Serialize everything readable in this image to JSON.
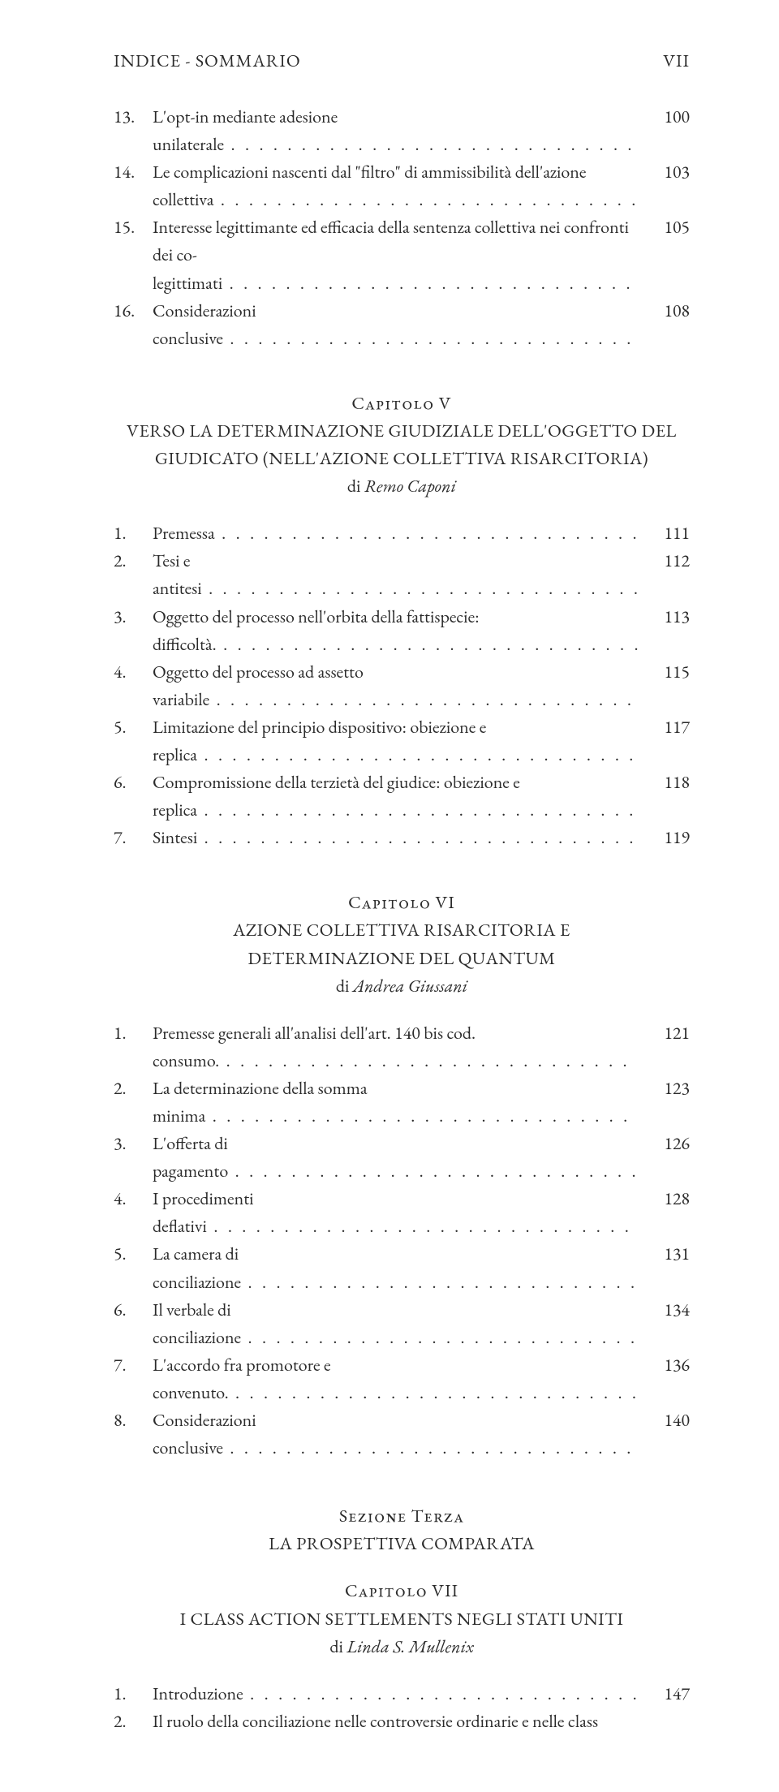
{
  "runningHead": {
    "left": "INDICE - SOMMARIO",
    "right": "VII"
  },
  "group1": [
    {
      "n": "13.",
      "t": "L'opt-in mediante adesione unilaterale",
      "p": "100"
    },
    {
      "n": "14.",
      "t": "Le complicazioni nascenti dal \"filtro\" di ammissibilità dell'azione collettiva",
      "p": "103"
    },
    {
      "n": "15.",
      "t": "Interesse legittimante ed efficacia della sentenza collettiva nei confronti dei co-legittimati",
      "p": "105"
    },
    {
      "n": "16.",
      "t": "Considerazioni conclusive",
      "p": "108"
    }
  ],
  "chapter5": {
    "label": "Capitolo V",
    "title_l1": "VERSO LA DETERMINAZIONE GIUDIZIALE DELL'OGGETTO DEL",
    "title_l2": "GIUDICATO (NELL'AZIONE COLLETTIVA RISARCITORIA)",
    "by": "di ",
    "author": "Remo Caponi"
  },
  "group2": [
    {
      "n": "1.",
      "t": "Premessa",
      "p": "111"
    },
    {
      "n": "2.",
      "t": "Tesi e antitesi",
      "p": "112"
    },
    {
      "n": "3.",
      "t": "Oggetto del processo nell'orbita della fattispecie: difficoltà.",
      "p": "113"
    },
    {
      "n": "4.",
      "t": "Oggetto del processo ad assetto variabile",
      "p": "115"
    },
    {
      "n": "5.",
      "t": "Limitazione del principio dispositivo: obiezione e replica",
      "p": "117"
    },
    {
      "n": "6.",
      "t": "Compromissione della terzietà del giudice: obiezione e replica",
      "p": "118"
    },
    {
      "n": "7.",
      "t": "Sintesi",
      "p": "119"
    }
  ],
  "chapter6": {
    "label": "Capitolo VI",
    "title_l1": "AZIONE COLLETTIVA RISARCITORIA E",
    "title_l2": "DETERMINAZIONE DEL QUANTUM",
    "by": "di ",
    "author": "Andrea Giussani"
  },
  "group3": [
    {
      "n": "1.",
      "t": "Premesse generali all'analisi dell'art. 140 bis cod. consumo.",
      "p": "121"
    },
    {
      "n": "2.",
      "t": "La determinazione della somma minima",
      "p": "123"
    },
    {
      "n": "3.",
      "t": "L'offerta di pagamento",
      "p": "126"
    },
    {
      "n": "4.",
      "t": "I procedimenti deflativi",
      "p": "128"
    },
    {
      "n": "5.",
      "t": "La camera di conciliazione",
      "p": "131"
    },
    {
      "n": "6.",
      "t": "Il verbale di conciliazione",
      "p": "134"
    },
    {
      "n": "7.",
      "t": "L'accordo fra promotore e convenuto.",
      "p": "136"
    },
    {
      "n": "8.",
      "t": "Considerazioni conclusive",
      "p": "140"
    }
  ],
  "section3": {
    "label": "Sezione Terza",
    "title": "LA PROSPETTIVA COMPARATA"
  },
  "chapter7": {
    "label": "Capitolo VII",
    "title_l1": "I CLASS ACTION SETTLEMENTS NEGLI STATI UNITI",
    "by": "di ",
    "author": "Linda S. Mullenix"
  },
  "group4": [
    {
      "n": "1.",
      "t": "Introduzione",
      "p": "147"
    }
  ],
  "trailing": {
    "n": "2.",
    "t": "Il ruolo della conciliazione nelle controversie ordinarie e nelle class"
  }
}
